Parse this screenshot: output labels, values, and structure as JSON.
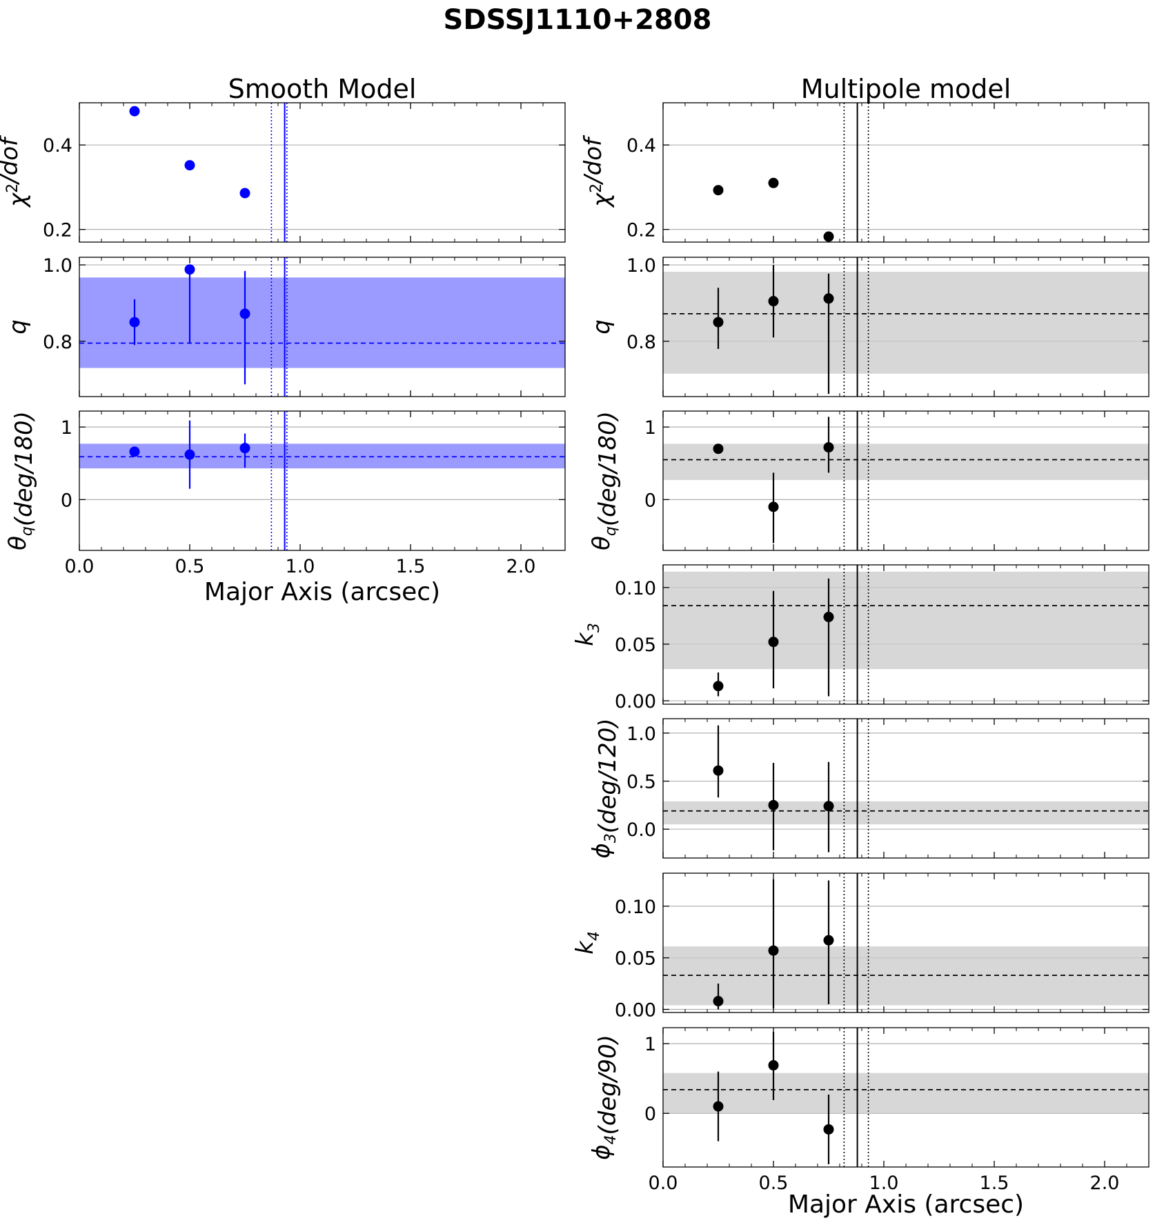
{
  "figure_title": "SDSSJ1110+2808",
  "columns": [
    {
      "key": "smooth",
      "title": "Smooth Model",
      "color": "#0000ff",
      "band_color": "#9b9bff"
    },
    {
      "key": "multipole",
      "title": "Multipole model",
      "color": "#000000",
      "band_color": "#cccccc"
    }
  ],
  "xlabel": "Major Axis (arcsec)",
  "chart_data": [
    {
      "type": "scatter",
      "column": "smooth",
      "ylabel_key": "chi2",
      "xlim": [
        0,
        2.2
      ],
      "ylim": [
        0.17,
        0.5
      ],
      "x": [
        0.25,
        0.5,
        0.75
      ],
      "y": [
        0.48,
        0.352,
        0.286
      ],
      "yerr": null,
      "band": null,
      "median": null,
      "yticks": [
        0.2,
        0.4
      ],
      "ytick_labels": [
        "0.2",
        "0.4"
      ],
      "vlines": {
        "solid": 0.93,
        "dotted": [
          0.87,
          0.94
        ]
      }
    },
    {
      "type": "scatter",
      "column": "smooth",
      "ylabel_key": "q",
      "xlim": [
        0,
        2.2
      ],
      "ylim": [
        0.655,
        1.02
      ],
      "x": [
        0.25,
        0.5,
        0.75
      ],
      "y": [
        0.85,
        0.988,
        0.872
      ],
      "yerr": [
        [
          0.06,
          0.06
        ],
        [
          0.193,
          0.0
        ],
        [
          0.185,
          0.112
        ]
      ],
      "band": [
        0.73,
        0.967
      ],
      "median": 0.795,
      "yticks": [
        0.8,
        1.0
      ],
      "ytick_labels": [
        "0.8",
        "1.0"
      ],
      "vlines": {
        "solid": 0.93,
        "dotted": [
          0.87,
          0.94
        ]
      }
    },
    {
      "type": "scatter",
      "column": "smooth",
      "ylabel_key": "theta_q",
      "xlim": [
        0,
        2.2
      ],
      "ylim": [
        -0.7,
        1.22
      ],
      "x": [
        0.25,
        0.5,
        0.75
      ],
      "y": [
        0.66,
        0.62,
        0.71
      ],
      "yerr": [
        [
          0.06,
          0.06
        ],
        [
          0.47,
          0.47
        ],
        [
          0.27,
          0.2
        ]
      ],
      "band": [
        0.43,
        0.77
      ],
      "median": 0.59,
      "yticks": [
        0,
        1
      ],
      "ytick_labels": [
        "0",
        "1"
      ],
      "vlines": {
        "solid": 0.93,
        "dotted": [
          0.87,
          0.94
        ]
      }
    },
    {
      "type": "scatter",
      "column": "multipole",
      "ylabel_key": "chi2",
      "xlim": [
        0,
        2.2
      ],
      "ylim": [
        0.17,
        0.5
      ],
      "x": [
        0.25,
        0.5,
        0.75
      ],
      "y": [
        0.293,
        0.31,
        0.183
      ],
      "yerr": null,
      "band": null,
      "median": null,
      "yticks": [
        0.2,
        0.4
      ],
      "ytick_labels": [
        "0.2",
        "0.4"
      ],
      "vlines": {
        "solid": 0.88,
        "dotted": [
          0.82,
          0.93
        ]
      }
    },
    {
      "type": "scatter",
      "column": "multipole",
      "ylabel_key": "q",
      "xlim": [
        0,
        2.2
      ],
      "ylim": [
        0.655,
        1.02
      ],
      "x": [
        0.25,
        0.5,
        0.75
      ],
      "y": [
        0.85,
        0.905,
        0.912
      ],
      "yerr": [
        [
          0.07,
          0.09
        ],
        [
          0.095,
          0.095
        ],
        [
          0.25,
          0.065
        ]
      ],
      "band": [
        0.715,
        0.982
      ],
      "median": 0.872,
      "yticks": [
        0.8,
        1.0
      ],
      "ytick_labels": [
        "0.8",
        "1.0"
      ],
      "vlines": {
        "solid": 0.88,
        "dotted": [
          0.82,
          0.93
        ]
      }
    },
    {
      "type": "scatter",
      "column": "multipole",
      "ylabel_key": "theta_q",
      "xlim": [
        0,
        2.2
      ],
      "ylim": [
        -0.7,
        1.22
      ],
      "x": [
        0.25,
        0.5,
        0.75
      ],
      "y": [
        0.7,
        -0.1,
        0.72
      ],
      "yerr": [
        [
          0.07,
          0.05
        ],
        [
          0.5,
          0.47
        ],
        [
          0.35,
          0.42
        ]
      ],
      "band": [
        0.27,
        0.77
      ],
      "median": 0.55,
      "yticks": [
        0,
        1
      ],
      "ytick_labels": [
        "0",
        "1"
      ],
      "vlines": {
        "solid": 0.88,
        "dotted": [
          0.82,
          0.93
        ]
      }
    },
    {
      "type": "scatter",
      "column": "multipole",
      "ylabel_key": "k3",
      "xlim": [
        0,
        2.2
      ],
      "ylim": [
        -0.003,
        0.12
      ],
      "x": [
        0.25,
        0.5,
        0.75
      ],
      "y": [
        0.013,
        0.052,
        0.074
      ],
      "yerr": [
        [
          0.009,
          0.012
        ],
        [
          0.041,
          0.045
        ],
        [
          0.07,
          0.034
        ]
      ],
      "band": [
        0.028,
        0.114
      ],
      "median": 0.084,
      "yticks": [
        0.0,
        0.05,
        0.1
      ],
      "ytick_labels": [
        "0.00",
        "0.05",
        "0.10"
      ],
      "vlines": {
        "solid": 0.88,
        "dotted": [
          0.82,
          0.93
        ]
      }
    },
    {
      "type": "scatter",
      "column": "multipole",
      "ylabel_key": "phi3",
      "xlim": [
        0,
        2.2
      ],
      "ylim": [
        -0.3,
        1.15
      ],
      "x": [
        0.25,
        0.5,
        0.75
      ],
      "y": [
        0.61,
        0.25,
        0.24
      ],
      "yerr": [
        [
          0.28,
          0.47
        ],
        [
          0.47,
          0.44
        ],
        [
          0.48,
          0.46
        ]
      ],
      "band": [
        0.05,
        0.29
      ],
      "median": 0.19,
      "yticks": [
        0.0,
        0.5,
        1.0
      ],
      "ytick_labels": [
        "0.0",
        "0.5",
        "1.0"
      ],
      "vlines": {
        "solid": 0.88,
        "dotted": [
          0.82,
          0.93
        ]
      }
    },
    {
      "type": "scatter",
      "column": "multipole",
      "ylabel_key": "k4",
      "xlim": [
        0,
        2.2
      ],
      "ylim": [
        -0.003,
        0.132
      ],
      "x": [
        0.25,
        0.5,
        0.75
      ],
      "y": [
        0.008,
        0.057,
        0.067
      ],
      "yerr": [
        [
          0.008,
          0.017
        ],
        [
          0.056,
          0.069
        ],
        [
          0.062,
          0.058
        ]
      ],
      "band": [
        0.004,
        0.061
      ],
      "median": 0.033,
      "yticks": [
        0.0,
        0.05,
        0.1
      ],
      "ytick_labels": [
        "0.00",
        "0.05",
        "0.10"
      ],
      "vlines": {
        "solid": 0.88,
        "dotted": [
          0.82,
          0.93
        ]
      }
    },
    {
      "type": "scatter",
      "column": "multipole",
      "ylabel_key": "phi4",
      "xlim": [
        0,
        2.2
      ],
      "ylim": [
        -0.77,
        1.23
      ],
      "x": [
        0.25,
        0.5,
        0.75
      ],
      "y": [
        0.1,
        0.69,
        -0.23
      ],
      "yerr": [
        [
          0.5,
          0.5
        ],
        [
          0.5,
          0.48
        ],
        [
          0.5,
          0.5
        ]
      ],
      "band": [
        0.0,
        0.58
      ],
      "median": 0.34,
      "yticks": [
        0,
        1
      ],
      "ytick_labels": [
        "0",
        "1"
      ],
      "vlines": {
        "solid": 0.88,
        "dotted": [
          0.82,
          0.93
        ]
      }
    }
  ],
  "xticks": [
    0.0,
    0.5,
    1.0,
    1.5,
    2.0
  ],
  "xtick_labels": [
    "0.0",
    "0.5",
    "1.0",
    "1.5",
    "2.0"
  ]
}
